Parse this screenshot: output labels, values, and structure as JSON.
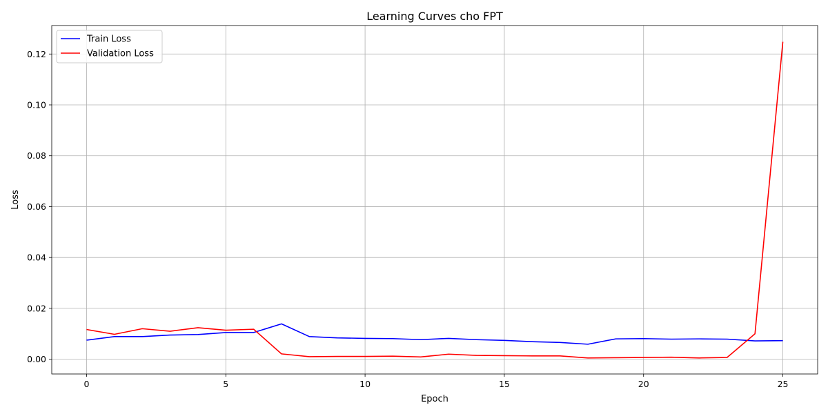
{
  "chart_data": {
    "type": "line",
    "title": "Learning Curves cho FPT",
    "xlabel": "Epoch",
    "ylabel": "Loss",
    "x": [
      0,
      1,
      2,
      3,
      4,
      5,
      6,
      7,
      8,
      9,
      10,
      11,
      12,
      13,
      14,
      15,
      16,
      17,
      18,
      19,
      20,
      21,
      22,
      23,
      24,
      25
    ],
    "xlim": [
      -1.25,
      26.25
    ],
    "ylim": [
      -0.0058,
      0.1312
    ],
    "x_ticks": [
      0,
      5,
      10,
      15,
      20,
      25
    ],
    "x_tick_labels": [
      "0",
      "5",
      "10",
      "15",
      "20",
      "25"
    ],
    "y_ticks": [
      0,
      0.02,
      0.04,
      0.06,
      0.08,
      0.1,
      0.12
    ],
    "y_tick_labels": [
      "0.00",
      "0.02",
      "0.04",
      "0.06",
      "0.08",
      "0.10",
      "0.12"
    ],
    "grid": true,
    "legend_position": "top-left",
    "series": [
      {
        "name": "Train Loss",
        "color": "#0000ff",
        "values": [
          0.0075,
          0.0089,
          0.0089,
          0.0095,
          0.0097,
          0.0105,
          0.0105,
          0.0139,
          0.0089,
          0.0084,
          0.0082,
          0.0081,
          0.0077,
          0.0082,
          0.0077,
          0.0074,
          0.0069,
          0.0066,
          0.0059,
          0.008,
          0.0081,
          0.0079,
          0.008,
          0.0079,
          0.0072,
          0.0073
        ]
      },
      {
        "name": "Validation Loss",
        "color": "#ff0000",
        "values": [
          0.0117,
          0.0098,
          0.012,
          0.011,
          0.0124,
          0.0114,
          0.0118,
          0.0021,
          0.001,
          0.0011,
          0.0011,
          0.0012,
          0.0009,
          0.002,
          0.0015,
          0.0014,
          0.0013,
          0.0013,
          0.0005,
          0.0006,
          0.0007,
          0.0008,
          0.0005,
          0.0007,
          0.01,
          0.1248
        ]
      }
    ]
  }
}
